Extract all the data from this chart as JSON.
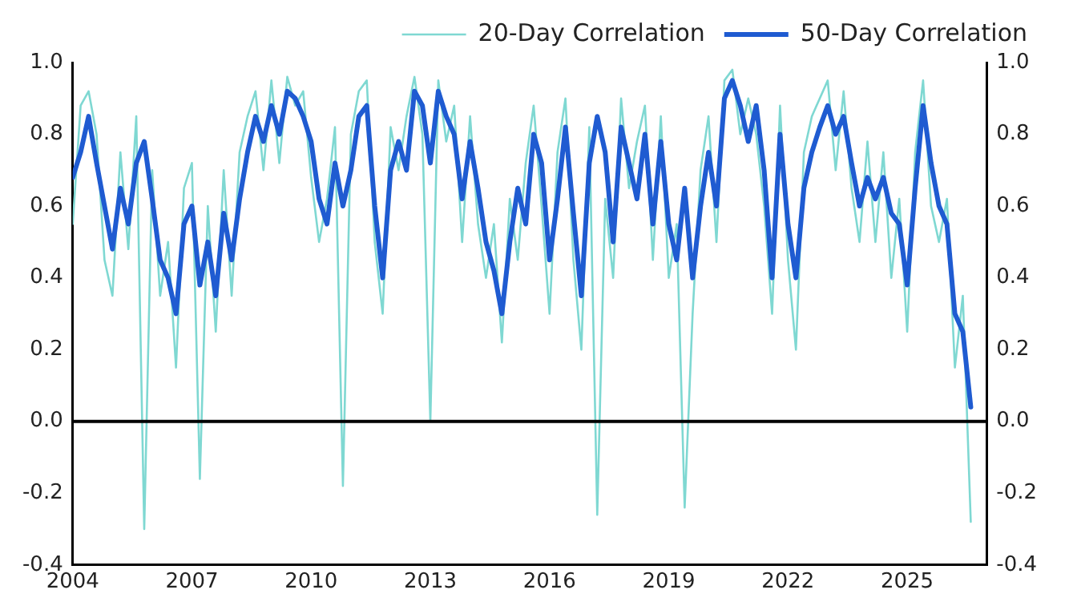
{
  "chart_data": {
    "type": "line",
    "x": [
      2004,
      2004.2,
      2004.4,
      2004.6,
      2004.8,
      2005,
      2005.2,
      2005.4,
      2005.6,
      2005.8,
      2006,
      2006.2,
      2006.4,
      2006.6,
      2006.8,
      2007,
      2007.2,
      2007.4,
      2007.6,
      2007.8,
      2008,
      2008.2,
      2008.4,
      2008.6,
      2008.8,
      2009,
      2009.2,
      2009.4,
      2009.6,
      2009.8,
      2010,
      2010.2,
      2010.4,
      2010.6,
      2010.8,
      2011,
      2011.2,
      2011.4,
      2011.6,
      2011.8,
      2012,
      2012.2,
      2012.4,
      2012.6,
      2012.8,
      2013,
      2013.2,
      2013.4,
      2013.6,
      2013.8,
      2014,
      2014.2,
      2014.4,
      2014.6,
      2014.8,
      2015,
      2015.2,
      2015.4,
      2015.6,
      2015.8,
      2016,
      2016.2,
      2016.4,
      2016.6,
      2016.8,
      2017,
      2017.2,
      2017.4,
      2017.6,
      2017.8,
      2018,
      2018.2,
      2018.4,
      2018.6,
      2018.8,
      2019,
      2019.2,
      2019.4,
      2019.6,
      2019.8,
      2020,
      2020.2,
      2020.4,
      2020.6,
      2020.8,
      2021,
      2021.2,
      2021.4,
      2021.6,
      2021.8,
      2022,
      2022.2,
      2022.4,
      2022.6,
      2022.8,
      2023,
      2023.2,
      2023.4,
      2023.6,
      2023.8,
      2024,
      2024.2,
      2024.4,
      2024.6,
      2024.8,
      2025,
      2025.2,
      2025.4,
      2025.6,
      2025.8,
      2026,
      2026.2,
      2026.4,
      2026.6
    ],
    "series": [
      {
        "name": "20-Day Correlation",
        "color": "#7fd8d2",
        "values": [
          0.55,
          0.88,
          0.92,
          0.8,
          0.45,
          0.35,
          0.75,
          0.48,
          0.85,
          -0.3,
          0.7,
          0.35,
          0.5,
          0.15,
          0.65,
          0.72,
          -0.16,
          0.6,
          0.25,
          0.7,
          0.35,
          0.75,
          0.85,
          0.92,
          0.7,
          0.95,
          0.72,
          0.96,
          0.88,
          0.92,
          0.68,
          0.5,
          0.62,
          0.82,
          -0.18,
          0.8,
          0.92,
          0.95,
          0.5,
          0.3,
          0.82,
          0.7,
          0.85,
          0.96,
          0.8,
          0.0,
          0.95,
          0.78,
          0.88,
          0.5,
          0.85,
          0.55,
          0.4,
          0.55,
          0.22,
          0.62,
          0.45,
          0.72,
          0.88,
          0.6,
          0.3,
          0.75,
          0.9,
          0.45,
          0.2,
          0.82,
          -0.26,
          0.62,
          0.4,
          0.9,
          0.65,
          0.78,
          0.88,
          0.45,
          0.85,
          0.4,
          0.55,
          -0.24,
          0.3,
          0.7,
          0.85,
          0.5,
          0.95,
          0.98,
          0.8,
          0.9,
          0.8,
          0.6,
          0.3,
          0.88,
          0.45,
          0.2,
          0.75,
          0.85,
          0.9,
          0.95,
          0.7,
          0.92,
          0.65,
          0.5,
          0.78,
          0.5,
          0.75,
          0.4,
          0.62,
          0.25,
          0.75,
          0.95,
          0.6,
          0.5,
          0.62,
          0.15,
          0.35,
          -0.28
        ]
      },
      {
        "name": "50-Day Correlation",
        "color": "#1f5bd1",
        "values": [
          0.68,
          0.75,
          0.85,
          0.72,
          0.6,
          0.48,
          0.65,
          0.55,
          0.72,
          0.78,
          0.62,
          0.45,
          0.4,
          0.3,
          0.55,
          0.6,
          0.38,
          0.5,
          0.35,
          0.58,
          0.45,
          0.62,
          0.75,
          0.85,
          0.78,
          0.88,
          0.8,
          0.92,
          0.9,
          0.85,
          0.78,
          0.62,
          0.55,
          0.72,
          0.6,
          0.7,
          0.85,
          0.88,
          0.6,
          0.4,
          0.7,
          0.78,
          0.7,
          0.92,
          0.88,
          0.72,
          0.92,
          0.85,
          0.8,
          0.62,
          0.78,
          0.65,
          0.5,
          0.42,
          0.3,
          0.5,
          0.65,
          0.55,
          0.8,
          0.72,
          0.45,
          0.62,
          0.82,
          0.58,
          0.35,
          0.72,
          0.85,
          0.75,
          0.5,
          0.82,
          0.72,
          0.62,
          0.8,
          0.55,
          0.78,
          0.55,
          0.45,
          0.65,
          0.4,
          0.6,
          0.75,
          0.6,
          0.9,
          0.95,
          0.88,
          0.78,
          0.88,
          0.7,
          0.4,
          0.8,
          0.55,
          0.4,
          0.65,
          0.75,
          0.82,
          0.88,
          0.8,
          0.85,
          0.72,
          0.6,
          0.68,
          0.62,
          0.68,
          0.58,
          0.55,
          0.38,
          0.65,
          0.88,
          0.72,
          0.6,
          0.55,
          0.3,
          0.25,
          0.04
        ]
      }
    ],
    "xlim": [
      2004,
      2027
    ],
    "xticks": [
      2004,
      2007,
      2010,
      2013,
      2016,
      2019,
      2022,
      2025
    ],
    "ylim": [
      -0.4,
      1.0
    ],
    "yticks": [
      {
        "value": -0.4,
        "label": "-0.4"
      },
      {
        "value": -0.2,
        "label": "-0.2"
      },
      {
        "value": 0,
        "label": "0.0"
      },
      {
        "value": 0.2,
        "label": "0.2"
      },
      {
        "value": 0.4,
        "label": "0.4"
      },
      {
        "value": 0.6,
        "label": "0.6"
      },
      {
        "value": 0.8,
        "label": "0.8"
      },
      {
        "value": 1,
        "label": "1.0"
      }
    ],
    "y2lim": [
      -0.4,
      1.0
    ],
    "y2ticks": [
      {
        "value": -0.4,
        "label": "-0.4"
      },
      {
        "value": -0.2,
        "label": "-0.2"
      },
      {
        "value": 0,
        "label": "0.0"
      },
      {
        "value": 0.2,
        "label": "0.2"
      },
      {
        "value": 0.4,
        "label": "0.4"
      },
      {
        "value": 0.6,
        "label": "0.6"
      },
      {
        "value": 0.8,
        "label": "0.8"
      },
      {
        "value": 1,
        "label": "1.0"
      }
    ],
    "ref_lines": [
      {
        "axis": "y",
        "value": 0,
        "color": "#000000"
      }
    ],
    "grid": false,
    "legend": "top",
    "marker": "none",
    "line_style": "solid"
  }
}
